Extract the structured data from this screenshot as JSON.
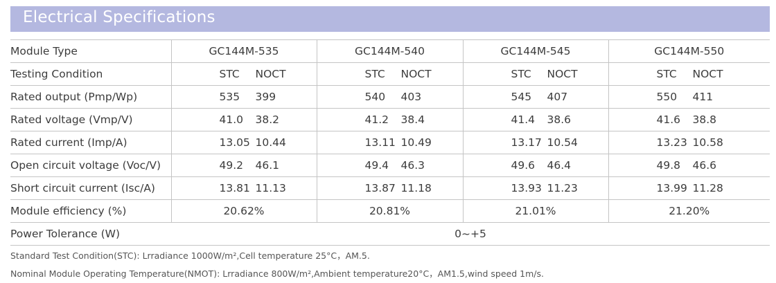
{
  "title": "Electrical Specifications",
  "header_label": "Module Type",
  "models": [
    "GC144M-535",
    "GC144M-540",
    "GC144M-545",
    "GC144M-550"
  ],
  "testing_condition": {
    "label": "Testing Condition",
    "stc": "STC",
    "noct": "NOCT"
  },
  "rows": [
    {
      "label": "Rated output (Pmp/Wp)",
      "values": [
        [
          "535",
          "399"
        ],
        [
          "540",
          "403"
        ],
        [
          "545",
          "407"
        ],
        [
          "550",
          "411"
        ]
      ]
    },
    {
      "label": "Rated voltage (Vmp/V)",
      "values": [
        [
          "41.0",
          "38.2"
        ],
        [
          "41.2",
          "38.4"
        ],
        [
          "41.4",
          "38.6"
        ],
        [
          "41.6",
          "38.8"
        ]
      ]
    },
    {
      "label": "Rated current (Imp/A)",
      "values": [
        [
          "13.05",
          "10.44"
        ],
        [
          "13.11",
          "10.49"
        ],
        [
          "13.17",
          "10.54"
        ],
        [
          "13.23",
          "10.58"
        ]
      ]
    },
    {
      "label": "Open circuit voltage (Voc/V)",
      "values": [
        [
          "49.2",
          "46.1"
        ],
        [
          "49.4",
          "46.3"
        ],
        [
          "49.6",
          "46.4"
        ],
        [
          "49.8",
          "46.6"
        ]
      ]
    },
    {
      "label": "Short circuit current (Isc/A)",
      "values": [
        [
          "13.81",
          "11.13"
        ],
        [
          "13.87",
          "11.18"
        ],
        [
          "13.93",
          "11.23"
        ],
        [
          "13.99",
          "11.28"
        ]
      ]
    }
  ],
  "efficiency": {
    "label": "Module efficiency (%)",
    "values": [
      "20.62%",
      "20.81%",
      "21.01%",
      "21.20%"
    ]
  },
  "power_tolerance": {
    "label": "Power Tolerance (W)",
    "value": "0~+5"
  },
  "notes": [
    "Standard Test Condition(STC): Lrradiance 1000W/m²,Cell temperature 25°C，AM.5.",
    "Nominal Module Operating Temperature(NMOT): Lrradiance 800W/m²,Ambient temperature20°C，AM1.5,wind speed 1m/s."
  ]
}
